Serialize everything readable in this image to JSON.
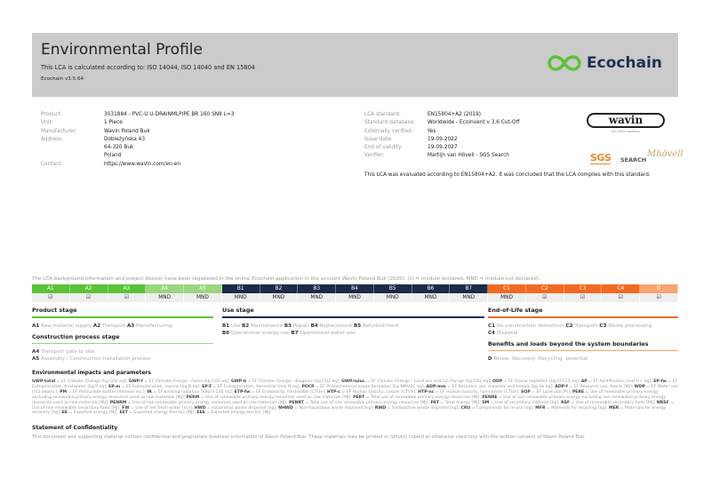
{
  "header": {
    "title": "Environmental Profile",
    "subtitle": "This LCA is calculated according to: ISO 14044, ISO 14040 and EN 15804",
    "version": "Ecochain v3.5.64",
    "brand": "Ecochain",
    "brand_color": "#5bc236"
  },
  "product": [
    {
      "label": "Product:",
      "value": "3031884 - PVC-U U-DRAINMLPIPE BR 160 SN8 L=3"
    },
    {
      "label": "Unit:",
      "value": "1 Piece"
    },
    {
      "label": "Manufacturer:",
      "value": "Wavin Poland Buk"
    },
    {
      "label": "Address:",
      "value": "Dobieżyńska 43",
      "value2": "64-320 Buk",
      "value3": "Poland"
    },
    {
      "label": "Contact:",
      "value": "https://www.wavin.com/en-en"
    }
  ],
  "lca": [
    {
      "label": "LCA standard:",
      "value": "EN15804+A2 (2019)"
    },
    {
      "label": "Standard database:",
      "value": "Worldwide - Ecoinvent v 3.6 Cut-Off"
    },
    {
      "label": "Externally verified:",
      "value": "Yes"
    },
    {
      "label": "Issue date:",
      "value": "19-09-2022"
    },
    {
      "label": "End of validity:",
      "value": "19-09-2027"
    },
    {
      "label": "Verifier:",
      "value": "Martijn van Hövell - SGS Search"
    }
  ],
  "conclusion": "This LCA was evaluated according to EN15804+A2. It was concluded that the LCA complies with this standard.",
  "logos": {
    "wavin": "wavin",
    "wavin_sub": "An Orbia business",
    "sgs": "SGS",
    "search": "SEARCH"
  },
  "registered": "The LCA background information and project dossier have been registered in the online Ecochain application in the account Wavin Poland Buk (2020). (☑ = module declared, MND = module not declared).",
  "modules": [
    {
      "code": "A1",
      "value": "☑",
      "color": "#5bc236"
    },
    {
      "code": "A2",
      "value": "☑",
      "color": "#5bc236"
    },
    {
      "code": "A3",
      "value": "☑",
      "color": "#5bc236"
    },
    {
      "code": "A4",
      "value": "MND",
      "color": "#9bd67f"
    },
    {
      "code": "A5",
      "value": "MND",
      "color": "#9bd67f"
    },
    {
      "code": "B1",
      "value": "MND",
      "color": "#1b2b48"
    },
    {
      "code": "B2",
      "value": "MND",
      "color": "#1b2b48"
    },
    {
      "code": "B3",
      "value": "MND",
      "color": "#1b2b48"
    },
    {
      "code": "B4",
      "value": "MND",
      "color": "#1b2b48"
    },
    {
      "code": "B5",
      "value": "MND",
      "color": "#1b2b48"
    },
    {
      "code": "B6",
      "value": "MND",
      "color": "#1b2b48"
    },
    {
      "code": "B7",
      "value": "MND",
      "color": "#1b2b48"
    },
    {
      "code": "C1",
      "value": "MND",
      "color": "#f26a21"
    },
    {
      "code": "C2",
      "value": "☑",
      "color": "#f26a21"
    },
    {
      "code": "C3",
      "value": "☑",
      "color": "#f26a21"
    },
    {
      "code": "C4",
      "value": "☑",
      "color": "#f26a21"
    },
    {
      "code": "D",
      "value": "☑",
      "color": "#f7a571"
    }
  ],
  "stages": {
    "product": {
      "title": "Product stage",
      "items": [
        {
          "c": "A1",
          "t": "Raw material supply"
        },
        {
          "c": "A2",
          "t": "Transport"
        },
        {
          "c": "A3",
          "t": "Manufacturing"
        }
      ]
    },
    "construction": {
      "title": "Construction process stage",
      "items": [
        {
          "c": "A4",
          "t": "Transport gate to site"
        },
        {
          "c": "A5",
          "t": "Assembly / Construction installation process"
        }
      ]
    },
    "use": {
      "title": "Use stage",
      "items": [
        {
          "c": "B1",
          "t": "Use"
        },
        {
          "c": "B2",
          "t": "Maintenance"
        },
        {
          "c": "B3",
          "t": "Repair"
        },
        {
          "c": "B4",
          "t": "Replacement"
        },
        {
          "c": "B5",
          "t": "Refurbishment"
        },
        {
          "c": "B6",
          "t": "Operational energy use"
        },
        {
          "c": "B7",
          "t": "Operational water use"
        }
      ]
    },
    "eol": {
      "title": "End-of-Life stage",
      "items": [
        {
          "c": "C1",
          "t": "De-construction demolition"
        },
        {
          "c": "C2",
          "t": "Transport"
        },
        {
          "c": "C3",
          "t": "Waste processing"
        },
        {
          "c": "C4",
          "t": "Disposal"
        }
      ]
    },
    "benefits": {
      "title": "Benefits and loads beyond the system boundaries",
      "items": [
        {
          "c": "D",
          "t": "Reuse- Recovery- Recycling- potential"
        }
      ]
    }
  },
  "env": {
    "title": "Environmental impacts and parameters",
    "items": [
      [
        "GWP-total",
        "EF Climate Change [kg CO2 eq]"
      ],
      [
        "GWP-f",
        "EF Climate change - Fossil [kg CO2 eq]"
      ],
      [
        "GWP-b",
        "EF Climate Change - Biogenic [kg CO2 eq]"
      ],
      [
        "GWP-luluc",
        "EF Climate Change - Land use and LU change [kg CO2 eq]"
      ],
      [
        "ODP",
        "EF Ozone depletion [kg CFC11 eq]"
      ],
      [
        "AP",
        "EF Acidification [mol H+ eq]"
      ],
      [
        "EP-fw",
        "EF Eutrophication, freshwater [kg P eq]"
      ],
      [
        "EP-m",
        "EF Eutrophication, marine [kg N eq]"
      ],
      [
        "EP-T",
        "EF Eutrophication, terrestrial [mol N eq]"
      ],
      [
        "POCP",
        "EF Photochemical ozone formation [kg NMVOC eq]"
      ],
      [
        "ADP-mm",
        "EF Resource use, minerals and metals [kg Sb eq]"
      ],
      [
        "ADP-f",
        "EF Resource use, fossils [MJ]"
      ],
      [
        "WDP",
        "EF Water use [m3 depriv.]"
      ],
      [
        "PM",
        "EF Particulate matter [disease inc.]"
      ],
      [
        "IR",
        "EF Ionising radiation [kBq U-235 eq]"
      ],
      [
        "ETP-fw",
        "EF Ecotoxicity, freshwater [CTUe]"
      ],
      [
        "HTP-c",
        "EF Human toxicity, cancer [CTUh]"
      ],
      [
        "HTP-nc",
        "EF Human toxicity, non-cancer [CTUh]"
      ],
      [
        "SQP",
        "EF Land use [Pt]"
      ],
      [
        "PERE",
        "Use of renewable primary energy excluding renewable primary energy resources used as raw materials [MJ]"
      ],
      [
        "PERM",
        "Use of renewable primary energy resources used as raw materials [MJ]"
      ],
      [
        "PERT",
        "Total use of renewable primary energy resources [MJ]"
      ],
      [
        "PENRE",
        "Use of non renewable primary energy excluding non renewable primary energy resources used as raw materials [MJ]"
      ],
      [
        "PENRM",
        "Use of non renewable primary energy resources used as raw materials [MJ]"
      ],
      [
        "PENRT",
        "Total use of non renewable primary energy resources [MJ]"
      ],
      [
        "PET",
        "Total energy [MJ]"
      ],
      [
        "SM",
        "Use of secondary material [kg]"
      ],
      [
        "RSF",
        "Use of renewable secondary fuels [MJ]"
      ],
      [
        "NRSF",
        "Use of non-renewable secondary fuels [MJ]"
      ],
      [
        "FW",
        "Use of net fresh water [m3]"
      ],
      [
        "HWD",
        "Hazardous waste disposed [kg]"
      ],
      [
        "NHWD",
        "Non-hazardous waste disposed [kg]"
      ],
      [
        "RWD",
        "Radioactive waste disposed [kg]"
      ],
      [
        "CRU",
        "Components for re-use [kg]"
      ],
      [
        "MFR",
        "Materials for recycling [kg]"
      ],
      [
        "MER",
        "Materials for energy recovery [kg]"
      ],
      [
        "EE",
        "Exported energy [MJ]"
      ],
      [
        "EET",
        "Exported energy thermic [MJ]"
      ],
      [
        "EEE",
        "Exported energy electric [MJ]"
      ]
    ]
  },
  "confidentiality": {
    "title": "Statement of Confidentiality",
    "text": "This document and supporting material contain confidential and proprietary business information of Wavin Poland Buk. These materials may be printed or (photo) copied or otherwise used only with the written consent of Wavin Poland Buk."
  }
}
